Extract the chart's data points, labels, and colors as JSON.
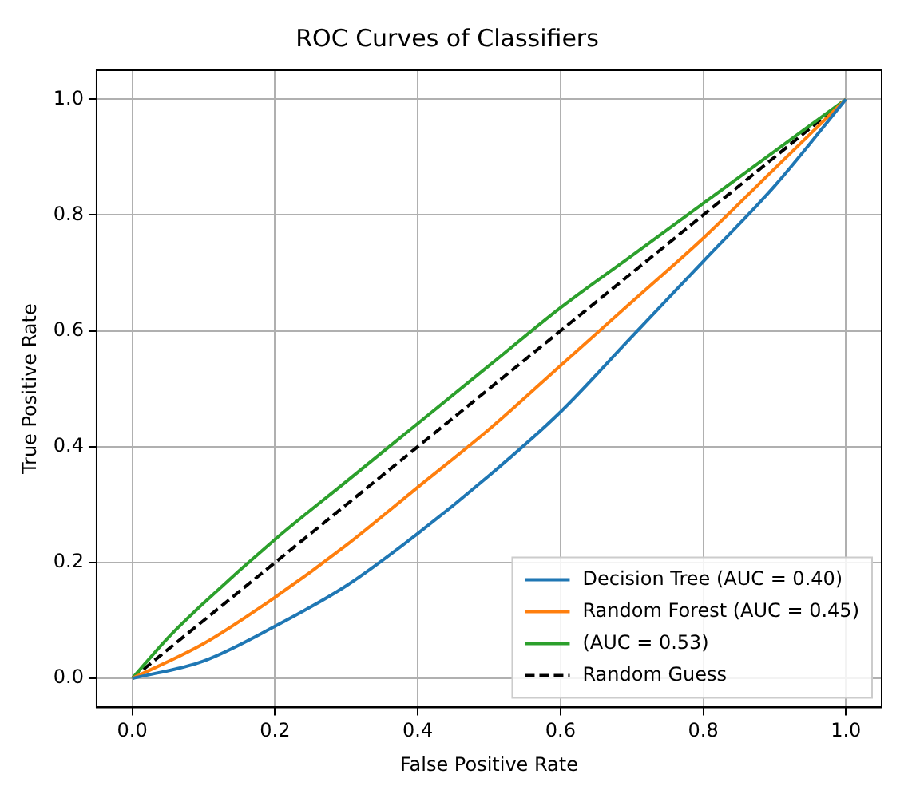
{
  "chart_data": {
    "type": "line",
    "title": "ROC Curves of Classifiers",
    "xlabel": "False Positive Rate",
    "ylabel": "True Positive Rate",
    "xlim": [
      -0.05,
      1.05
    ],
    "ylim": [
      -0.05,
      1.05
    ],
    "xticks": [
      {
        "value": 0,
        "label": "0.0"
      },
      {
        "value": 0.2,
        "label": "0.2"
      },
      {
        "value": 0.4,
        "label": "0.4"
      },
      {
        "value": 0.6,
        "label": "0.6"
      },
      {
        "value": 0.8,
        "label": "0.8"
      },
      {
        "value": 1,
        "label": "1.0"
      }
    ],
    "yticks": [
      {
        "value": 0,
        "label": "0.0"
      },
      {
        "value": 0.2,
        "label": "0.2"
      },
      {
        "value": 0.4,
        "label": "0.4"
      },
      {
        "value": 0.6,
        "label": "0.6"
      },
      {
        "value": 0.8,
        "label": "0.8"
      },
      {
        "value": 1,
        "label": "1.0"
      }
    ],
    "grid": true,
    "legend": "bottom right",
    "marker": "none",
    "series": [
      {
        "name": "Decision Tree (AUC = 0.40)",
        "color": "#1f77b4",
        "x": [
          0,
          0.1,
          0.2,
          0.3,
          0.4,
          0.5,
          0.6,
          0.7,
          0.8,
          0.9,
          1
        ],
        "values": [
          0,
          0.03,
          0.09,
          0.16,
          0.25,
          0.35,
          0.46,
          0.59,
          0.72,
          0.85,
          1
        ]
      },
      {
        "name": "Random Forest (AUC = 0.45)",
        "color": "#ff7f0e",
        "x": [
          0,
          0.1,
          0.2,
          0.3,
          0.4,
          0.5,
          0.6,
          0.7,
          0.8,
          0.9,
          1
        ],
        "values": [
          0,
          0.06,
          0.14,
          0.23,
          0.33,
          0.43,
          0.54,
          0.65,
          0.76,
          0.88,
          1
        ]
      },
      {
        "name": "(AUC = 0.53)",
        "color": "#2ca02c",
        "x": [
          0,
          0.05,
          0.1,
          0.2,
          0.3,
          0.4,
          0.5,
          0.6,
          0.7,
          0.8,
          0.9,
          1
        ],
        "values": [
          0,
          0.07,
          0.13,
          0.24,
          0.34,
          0.44,
          0.54,
          0.64,
          0.73,
          0.82,
          0.91,
          1
        ]
      },
      {
        "name": "Random Guess",
        "color": "#000000",
        "line_style": "dashed",
        "x": [
          0,
          1
        ],
        "values": [
          0,
          1
        ]
      }
    ]
  }
}
